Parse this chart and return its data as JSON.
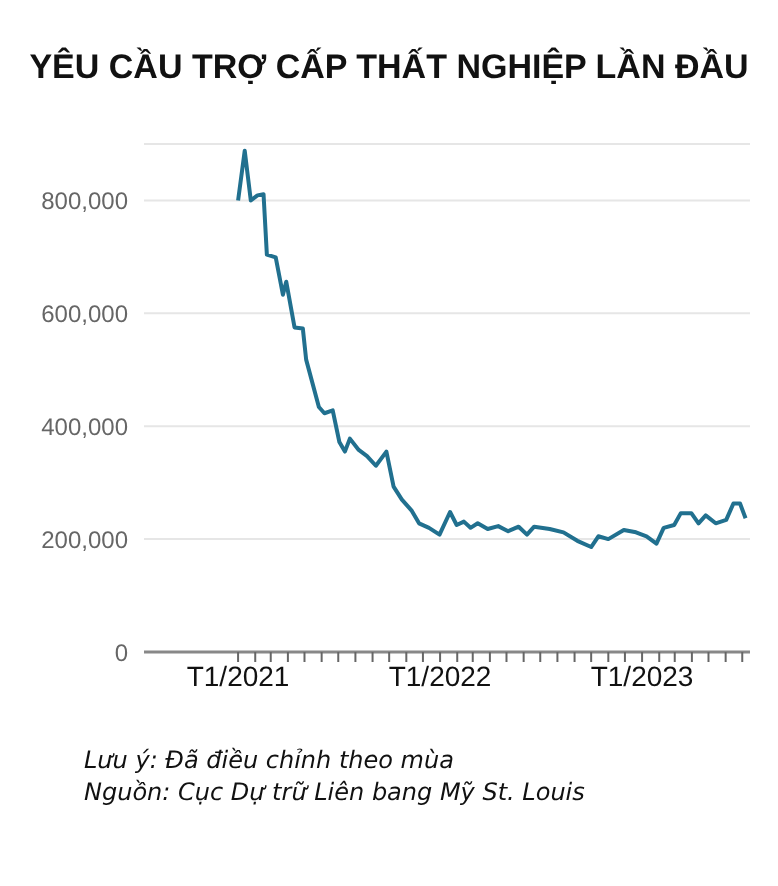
{
  "chart_data": {
    "type": "line",
    "title": "YÊU CẦU TRỢ CẤP THẤT NGHIỆP LẦN ĐẦU",
    "annotations": [
      "Lưu ý: Đã điều chỉnh theo mùa",
      "Nguồn: Cục Dự trữ Liên bang Mỹ St. Louis"
    ],
    "x": [
      "2021-01-01",
      "2021-01-13",
      "2021-01-24",
      "2021-02-05",
      "2021-02-16",
      "2021-02-22",
      "2021-03-10",
      "2021-03-23",
      "2021-03-29",
      "2021-04-13",
      "2021-04-28",
      "2021-05-04",
      "2021-05-27",
      "2021-06-06",
      "2021-06-21",
      "2021-07-03",
      "2021-07-13",
      "2021-07-22",
      "2021-08-07",
      "2021-08-22",
      "2021-09-07",
      "2021-09-26",
      "2021-10-09",
      "2021-10-24",
      "2021-11-11",
      "2021-11-24",
      "2021-12-12",
      "2021-12-31",
      "2022-01-19",
      "2022-01-31",
      "2022-02-13",
      "2022-02-25",
      "2022-03-10",
      "2022-03-28",
      "2022-04-16",
      "2022-05-04",
      "2022-05-23",
      "2022-06-07",
      "2022-06-20",
      "2022-07-18",
      "2022-08-12",
      "2022-09-06",
      "2022-10-01",
      "2022-10-14",
      "2022-11-01",
      "2022-11-29",
      "2022-12-21",
      "2023-01-09",
      "2023-01-27",
      "2023-02-09",
      "2023-02-28",
      "2023-03-12",
      "2023-03-31",
      "2023-04-13",
      "2023-04-26",
      "2023-05-14",
      "2023-06-02",
      "2023-06-15",
      "2023-06-27",
      "2023-07-07"
    ],
    "series": [
      {
        "color": "#21708f",
        "values": [
          800000,
          888000,
          800000,
          809000,
          811000,
          704000,
          699000,
          633000,
          656000,
          575000,
          573000,
          518000,
          434000,
          423000,
          428000,
          372000,
          355000,
          378000,
          358000,
          347000,
          330000,
          355000,
          293000,
          270000,
          250000,
          228000,
          220000,
          208000,
          248000,
          225000,
          231000,
          220000,
          228000,
          218000,
          223000,
          214000,
          222000,
          208000,
          222000,
          218000,
          212000,
          197000,
          186000,
          205000,
          200000,
          216000,
          212000,
          205000,
          192000,
          220000,
          225000,
          246000,
          246000,
          228000,
          242000,
          228000,
          234000,
          263000,
          263000,
          237000
        ]
      }
    ],
    "xlim": [
      "2020-07-15",
      "2023-07-15"
    ],
    "xticks": [
      {
        "value": "2021-01-01",
        "label": "T1/2021"
      },
      {
        "value": "2021-02-01",
        "label": null
      },
      {
        "value": "2021-03-01",
        "label": null
      },
      {
        "value": "2021-04-01",
        "label": null
      },
      {
        "value": "2021-05-01",
        "label": null
      },
      {
        "value": "2021-06-01",
        "label": null
      },
      {
        "value": "2021-07-01",
        "label": null
      },
      {
        "value": "2021-08-01",
        "label": null
      },
      {
        "value": "2021-09-01",
        "label": null
      },
      {
        "value": "2021-10-01",
        "label": null
      },
      {
        "value": "2021-11-01",
        "label": null
      },
      {
        "value": "2021-12-01",
        "label": null
      },
      {
        "value": "2022-01-01",
        "label": "T1/2022"
      },
      {
        "value": "2022-02-01",
        "label": null
      },
      {
        "value": "2022-03-01",
        "label": null
      },
      {
        "value": "2022-04-01",
        "label": null
      },
      {
        "value": "2022-05-01",
        "label": null
      },
      {
        "value": "2022-06-01",
        "label": null
      },
      {
        "value": "2022-07-01",
        "label": null
      },
      {
        "value": "2022-08-01",
        "label": null
      },
      {
        "value": "2022-09-01",
        "label": null
      },
      {
        "value": "2022-10-01",
        "label": null
      },
      {
        "value": "2022-11-01",
        "label": null
      },
      {
        "value": "2022-12-01",
        "label": null
      },
      {
        "value": "2023-01-01",
        "label": "T1/2023"
      },
      {
        "value": "2023-02-01",
        "label": null
      },
      {
        "value": "2023-03-01",
        "label": null
      },
      {
        "value": "2023-04-01",
        "label": null
      },
      {
        "value": "2023-05-01",
        "label": null
      },
      {
        "value": "2023-06-01",
        "label": null
      },
      {
        "value": "2023-07-01",
        "label": null
      }
    ],
    "ylim": [
      0,
      900000
    ],
    "yticks": [
      0,
      {
        "value": 200000,
        "label": "200,000"
      },
      {
        "value": 400000,
        "label": "400,000"
      },
      {
        "value": 600000,
        "label": "600,000"
      },
      {
        "value": 800000,
        "label": "800,000"
      }
    ],
    "grid": "y",
    "marker": "none",
    "line_style": "solid"
  }
}
